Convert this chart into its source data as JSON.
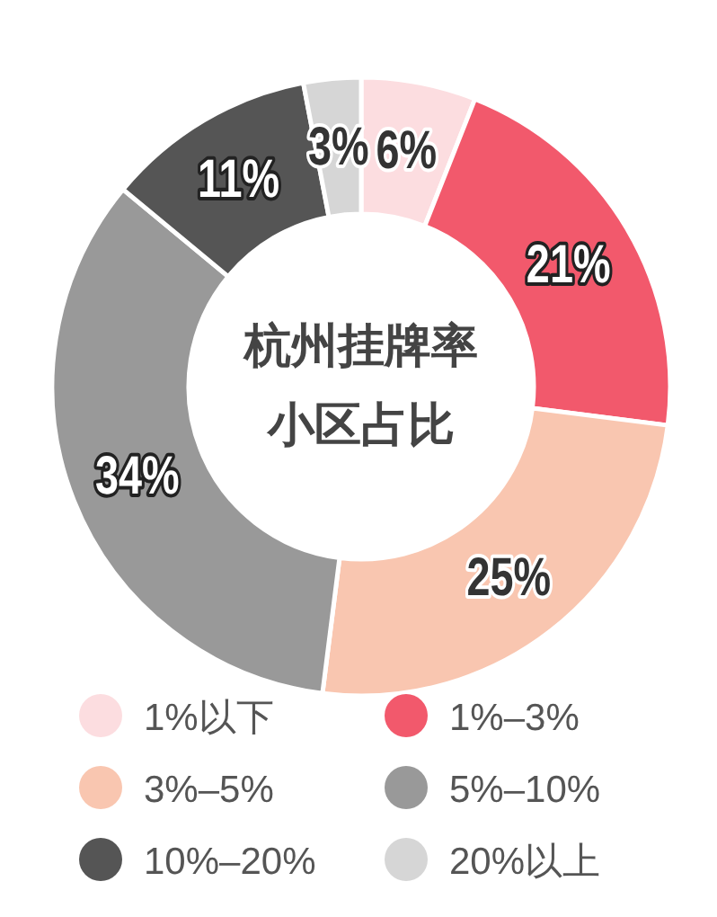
{
  "chart_data": {
    "type": "donut",
    "title": "杭州挂牌率小区占比",
    "categories": [
      "1%以下",
      "1%–3%",
      "3%–5%",
      "5%–10%",
      "10%–20%",
      "20%以上"
    ],
    "values": [
      6,
      21,
      25,
      34,
      11,
      3
    ],
    "colors": [
      "#fcdde0",
      "#f2596c",
      "#f9c6b0",
      "#999999",
      "#555555",
      "#d6d6d6"
    ],
    "value_labels": [
      "6%",
      "21%",
      "25%",
      "34%",
      "11%",
      "3%"
    ],
    "legend": "bottom"
  }
}
